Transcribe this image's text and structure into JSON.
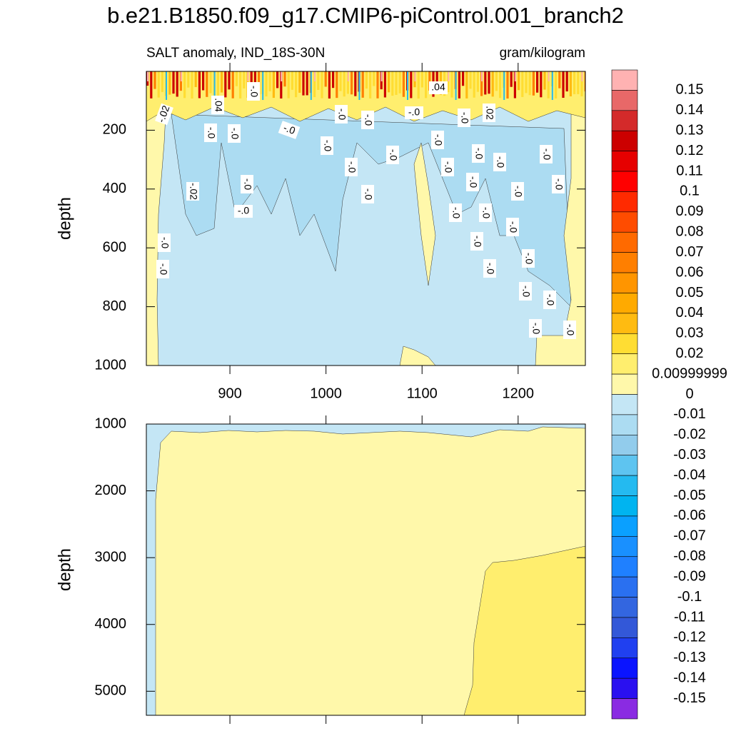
{
  "chart_data": [
    {
      "type": "contour",
      "title": "b.e21.B1850.f09_g17.CMIP6-piControl.001_branch2",
      "left_string": "SALT anomaly, IND_18S-30N",
      "right_string": "gram/kilogram",
      "y_label": "depth",
      "xlim": [
        813,
        1270
      ],
      "xticks": [
        900,
        1000,
        1100,
        1200
      ],
      "ylim": [
        0,
        1000
      ],
      "yticks": [
        200,
        400,
        600,
        800,
        1000
      ],
      "contour_labels": [
        ".04",
        "-.0",
        ".04",
        "-.02",
        "-.0",
        "-.0",
        "-.0",
        "-.0",
        ".02",
        "-.0",
        "-.0",
        "-.0",
        "-.0",
        "-.0",
        "-.0",
        "-.0",
        "-.0",
        "-.0",
        "-.0",
        "-.0",
        "-.0",
        "-.0",
        "-.0",
        "-.02",
        "-.0",
        "-.0",
        "-.0",
        "-.0",
        "-.0",
        "-.0",
        "-.0",
        "-.0",
        "-.0",
        "-.0",
        "-.0",
        "-.0",
        "-.0",
        "-.0",
        "-.0"
      ],
      "colorbar": {
        "levels": [
          0.15,
          0.14,
          0.13,
          0.12,
          0.11,
          0.1,
          0.09,
          0.08,
          0.07,
          0.06,
          0.05,
          0.04,
          0.03,
          0.02,
          0.00999999,
          0,
          -0.01,
          -0.02,
          -0.03,
          -0.04,
          -0.05,
          -0.06,
          -0.07,
          -0.08,
          -0.09,
          -0.1,
          -0.11,
          -0.12,
          -0.13,
          -0.14,
          -0.15
        ],
        "colors": [
          "#ffb2b2",
          "#e86868",
          "#d42a2a",
          "#cc0000",
          "#e60000",
          "#ff0000",
          "#ff2a00",
          "#ff4c00",
          "#ff6a00",
          "#ff7f00",
          "#ff9500",
          "#ffaa00",
          "#ffbb11",
          "#ffdd33",
          "#ffee6e",
          "#fff8aa",
          "#c4e6f5",
          "#acdcf2",
          "#92ccec",
          "#5ec4f0",
          "#24baf0",
          "#00b4f0",
          "#0aa0ff",
          "#1990ff",
          "#1f80ff",
          "#2a70f0",
          "#3366e0",
          "#3358d8",
          "#2040f0",
          "#0a14ff",
          "#2a10f0",
          "#8a2be2"
        ]
      }
    },
    {
      "type": "contour",
      "y_label": "depth",
      "ylim": [
        1000,
        5360
      ],
      "yticks": [
        1000,
        2000,
        3000,
        4000,
        5000
      ]
    }
  ]
}
